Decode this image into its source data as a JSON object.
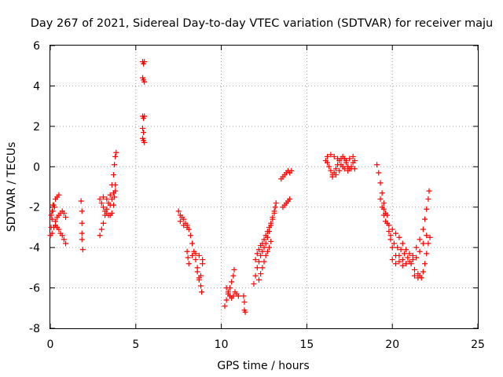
{
  "chart_data": {
    "type": "scatter",
    "title": "Day 267 of 2021, Sidereal Day-to-day VTEC variation (SDTVAR) for receiver maju",
    "xlabel": "GPS time / hours",
    "ylabel": "SDTVAR / TECUs",
    "xlim": [
      0,
      25
    ],
    "ylim": [
      -8,
      6
    ],
    "xticks": [
      "0",
      "5",
      "10",
      "15",
      "20",
      "25"
    ],
    "yticks": [
      "-8",
      "-6",
      "-4",
      "-2",
      "0",
      "2",
      "4",
      "6"
    ],
    "grid": true,
    "marker": "plus",
    "color": "#ff0000",
    "series": [
      {
        "name": "maju",
        "points": [
          [
            0.0,
            -3.4
          ],
          [
            0.05,
            -3.0
          ],
          [
            0.1,
            -2.6
          ],
          [
            0.15,
            -2.2
          ],
          [
            0.2,
            -1.9
          ],
          [
            0.3,
            -1.6
          ],
          [
            0.4,
            -1.5
          ],
          [
            0.5,
            -1.4
          ],
          [
            0.1,
            -3.3
          ],
          [
            0.2,
            -3.0
          ],
          [
            0.3,
            -2.7
          ],
          [
            0.4,
            -2.5
          ],
          [
            0.5,
            -2.4
          ],
          [
            0.6,
            -2.3
          ],
          [
            0.7,
            -2.2
          ],
          [
            0.8,
            -2.3
          ],
          [
            0.9,
            -2.5
          ],
          [
            0.05,
            -2.4
          ],
          [
            0.1,
            -2.2
          ],
          [
            0.15,
            -1.9
          ],
          [
            0.25,
            -2.0
          ],
          [
            0.3,
            -2.9
          ],
          [
            0.4,
            -3.0
          ],
          [
            0.5,
            -3.1
          ],
          [
            0.6,
            -3.3
          ],
          [
            0.7,
            -3.4
          ],
          [
            0.8,
            -3.6
          ],
          [
            0.9,
            -3.8
          ],
          [
            1.8,
            -1.7
          ],
          [
            1.85,
            -2.2
          ],
          [
            1.85,
            -2.8
          ],
          [
            1.85,
            -3.3
          ],
          [
            1.85,
            -3.6
          ],
          [
            1.9,
            -4.1
          ],
          [
            2.9,
            -3.4
          ],
          [
            3.0,
            -3.1
          ],
          [
            3.1,
            -2.8
          ],
          [
            3.2,
            -2.4
          ],
          [
            3.3,
            -2.1
          ],
          [
            3.4,
            -1.8
          ],
          [
            3.5,
            -1.4
          ],
          [
            3.6,
            -0.9
          ],
          [
            3.7,
            -0.4
          ],
          [
            3.75,
            0.1
          ],
          [
            3.8,
            0.5
          ],
          [
            3.85,
            0.7
          ],
          [
            2.9,
            -1.6
          ],
          [
            3.0,
            -1.8
          ],
          [
            3.1,
            -2.0
          ],
          [
            3.2,
            -2.2
          ],
          [
            3.3,
            -2.3
          ],
          [
            3.4,
            -2.4
          ],
          [
            3.5,
            -2.4
          ],
          [
            3.6,
            -2.3
          ],
          [
            3.7,
            -1.9
          ],
          [
            3.75,
            -1.5
          ],
          [
            3.8,
            -1.2
          ],
          [
            3.8,
            -0.9
          ],
          [
            3.1,
            -1.5
          ],
          [
            3.3,
            -1.6
          ],
          [
            3.5,
            -1.9
          ],
          [
            3.6,
            -1.6
          ],
          [
            3.7,
            -1.3
          ],
          [
            5.4,
            5.2
          ],
          [
            5.45,
            5.1
          ],
          [
            5.5,
            5.2
          ],
          [
            5.4,
            4.4
          ],
          [
            5.45,
            4.3
          ],
          [
            5.5,
            4.2
          ],
          [
            5.4,
            2.5
          ],
          [
            5.45,
            2.4
          ],
          [
            5.5,
            2.5
          ],
          [
            5.4,
            1.9
          ],
          [
            5.45,
            1.7
          ],
          [
            5.4,
            1.4
          ],
          [
            5.45,
            1.3
          ],
          [
            5.5,
            1.2
          ],
          [
            7.5,
            -2.2
          ],
          [
            7.6,
            -2.4
          ],
          [
            7.7,
            -2.5
          ],
          [
            7.8,
            -2.6
          ],
          [
            7.9,
            -2.8
          ],
          [
            8.0,
            -2.9
          ],
          [
            8.1,
            -3.1
          ],
          [
            8.2,
            -3.4
          ],
          [
            8.3,
            -3.8
          ],
          [
            8.4,
            -4.2
          ],
          [
            8.5,
            -4.6
          ],
          [
            8.6,
            -5.0
          ],
          [
            8.7,
            -5.5
          ],
          [
            8.8,
            -5.9
          ],
          [
            8.85,
            -6.2
          ],
          [
            7.6,
            -2.7
          ],
          [
            7.8,
            -2.9
          ],
          [
            8.0,
            -3.0
          ],
          [
            8.0,
            -4.2
          ],
          [
            8.05,
            -4.5
          ],
          [
            8.1,
            -4.8
          ],
          [
            8.3,
            -4.4
          ],
          [
            8.5,
            -4.3
          ],
          [
            8.7,
            -4.4
          ],
          [
            8.9,
            -4.6
          ],
          [
            8.6,
            -5.2
          ],
          [
            8.7,
            -5.6
          ],
          [
            8.8,
            -5.4
          ],
          [
            8.9,
            -4.8
          ],
          [
            10.2,
            -6.9
          ],
          [
            10.3,
            -6.6
          ],
          [
            10.4,
            -6.3
          ],
          [
            10.5,
            -6.0
          ],
          [
            10.6,
            -5.7
          ],
          [
            10.7,
            -5.4
          ],
          [
            10.75,
            -5.1
          ],
          [
            10.3,
            -6.0
          ],
          [
            10.4,
            -6.2
          ],
          [
            10.5,
            -6.4
          ],
          [
            10.6,
            -6.5
          ],
          [
            10.7,
            -6.4
          ],
          [
            10.8,
            -6.2
          ],
          [
            10.9,
            -6.3
          ],
          [
            11.0,
            -6.4
          ],
          [
            11.3,
            -6.4
          ],
          [
            11.35,
            -6.7
          ],
          [
            11.35,
            -7.1
          ],
          [
            11.4,
            -7.2
          ],
          [
            11.9,
            -5.8
          ],
          [
            12.0,
            -5.4
          ],
          [
            12.1,
            -5.0
          ],
          [
            12.2,
            -4.7
          ],
          [
            12.3,
            -4.4
          ],
          [
            12.4,
            -4.2
          ],
          [
            12.5,
            -4.0
          ],
          [
            12.6,
            -3.8
          ],
          [
            12.7,
            -3.5
          ],
          [
            12.8,
            -3.2
          ],
          [
            12.9,
            -2.9
          ],
          [
            13.0,
            -2.6
          ],
          [
            13.1,
            -2.3
          ],
          [
            13.15,
            -2.0
          ],
          [
            13.2,
            -1.8
          ],
          [
            12.0,
            -4.6
          ],
          [
            12.1,
            -4.3
          ],
          [
            12.2,
            -4.1
          ],
          [
            12.3,
            -3.9
          ],
          [
            12.4,
            -3.8
          ],
          [
            12.5,
            -3.6
          ],
          [
            12.6,
            -3.4
          ],
          [
            12.7,
            -3.2
          ],
          [
            12.8,
            -3.0
          ],
          [
            12.9,
            -2.8
          ],
          [
            13.0,
            -2.5
          ],
          [
            13.1,
            -2.2
          ],
          [
            12.2,
            -5.6
          ],
          [
            12.3,
            -5.3
          ],
          [
            12.4,
            -5.0
          ],
          [
            12.5,
            -4.7
          ],
          [
            12.6,
            -4.4
          ],
          [
            12.7,
            -4.2
          ],
          [
            12.8,
            -4.0
          ],
          [
            12.9,
            -3.7
          ],
          [
            13.6,
            -2.0
          ],
          [
            13.7,
            -1.9
          ],
          [
            13.8,
            -1.8
          ],
          [
            13.9,
            -1.7
          ],
          [
            14.0,
            -1.6
          ],
          [
            13.5,
            -0.6
          ],
          [
            13.6,
            -0.5
          ],
          [
            13.7,
            -0.4
          ],
          [
            13.8,
            -0.3
          ],
          [
            13.9,
            -0.2
          ],
          [
            14.0,
            -0.3
          ],
          [
            14.1,
            -0.2
          ],
          [
            16.1,
            0.3
          ],
          [
            16.2,
            0.2
          ],
          [
            16.3,
            0.0
          ],
          [
            16.4,
            -0.2
          ],
          [
            16.5,
            -0.4
          ],
          [
            16.6,
            -0.3
          ],
          [
            16.7,
            -0.1
          ],
          [
            16.8,
            0.1
          ],
          [
            16.9,
            0.3
          ],
          [
            17.0,
            0.4
          ],
          [
            17.1,
            0.5
          ],
          [
            17.2,
            0.4
          ],
          [
            17.3,
            0.2
          ],
          [
            17.4,
            0.0
          ],
          [
            17.5,
            -0.1
          ],
          [
            17.6,
            0.0
          ],
          [
            17.7,
            0.2
          ],
          [
            17.8,
            0.3
          ],
          [
            16.2,
            0.5
          ],
          [
            16.4,
            0.6
          ],
          [
            16.6,
            0.5
          ],
          [
            16.8,
            0.4
          ],
          [
            17.0,
            0.1
          ],
          [
            17.2,
            -0.1
          ],
          [
            17.4,
            -0.2
          ],
          [
            17.6,
            -0.1
          ],
          [
            17.8,
            -0.1
          ],
          [
            16.5,
            -0.5
          ],
          [
            16.7,
            -0.4
          ],
          [
            16.9,
            -0.2
          ],
          [
            17.1,
            0.0
          ],
          [
            17.3,
            0.3
          ],
          [
            17.5,
            0.4
          ],
          [
            17.7,
            0.5
          ],
          [
            19.1,
            0.1
          ],
          [
            19.2,
            -0.3
          ],
          [
            19.3,
            -0.8
          ],
          [
            19.4,
            -1.3
          ],
          [
            19.5,
            -1.8
          ],
          [
            19.6,
            -2.3
          ],
          [
            19.7,
            -2.8
          ],
          [
            19.8,
            -3.2
          ],
          [
            19.9,
            -3.6
          ],
          [
            20.0,
            -4.0
          ],
          [
            20.2,
            -4.4
          ],
          [
            20.4,
            -4.7
          ],
          [
            20.6,
            -4.9
          ],
          [
            20.8,
            -4.8
          ],
          [
            21.0,
            -4.7
          ],
          [
            21.2,
            -4.6
          ],
          [
            21.4,
            -4.5
          ],
          [
            21.6,
            -4.2
          ],
          [
            21.8,
            -3.8
          ],
          [
            22.0,
            -3.4
          ],
          [
            19.3,
            -1.6
          ],
          [
            19.4,
            -2.0
          ],
          [
            19.5,
            -2.4
          ],
          [
            19.6,
            -2.7
          ],
          [
            19.8,
            -2.9
          ],
          [
            20.0,
            -3.1
          ],
          [
            20.2,
            -3.3
          ],
          [
            20.4,
            -3.5
          ],
          [
            20.6,
            -3.8
          ],
          [
            20.8,
            -4.1
          ],
          [
            21.0,
            -4.3
          ],
          [
            21.2,
            -4.4
          ],
          [
            21.4,
            -4.0
          ],
          [
            21.6,
            -3.6
          ],
          [
            21.8,
            -3.1
          ],
          [
            21.9,
            -2.6
          ],
          [
            22.0,
            -2.1
          ],
          [
            22.1,
            -1.6
          ],
          [
            22.15,
            -1.2
          ],
          [
            19.5,
            -2.1
          ],
          [
            19.7,
            -2.4
          ],
          [
            19.9,
            -3.4
          ],
          [
            20.1,
            -3.8
          ],
          [
            20.3,
            -4.0
          ],
          [
            20.5,
            -4.1
          ],
          [
            20.7,
            -4.3
          ],
          [
            20.9,
            -4.5
          ],
          [
            21.1,
            -4.8
          ],
          [
            21.3,
            -5.1
          ],
          [
            21.5,
            -5.3
          ],
          [
            21.7,
            -5.5
          ],
          [
            21.8,
            -5.2
          ],
          [
            21.9,
            -4.8
          ],
          [
            22.0,
            -4.3
          ],
          [
            22.1,
            -3.8
          ],
          [
            22.2,
            -3.5
          ],
          [
            20.0,
            -4.6
          ],
          [
            20.2,
            -4.8
          ],
          [
            20.4,
            -4.4
          ],
          [
            20.6,
            -4.6
          ],
          [
            21.3,
            -5.4
          ],
          [
            21.5,
            -5.5
          ],
          [
            21.6,
            -5.4
          ]
        ]
      }
    ]
  }
}
